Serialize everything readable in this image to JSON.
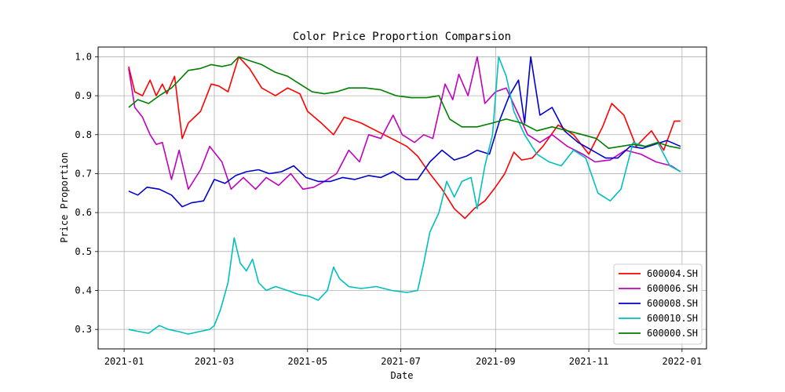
{
  "chart_data": {
    "type": "line",
    "title": "Color Price Proportion Comparsion",
    "xlabel": "Date",
    "ylabel": "Price Proportion",
    "grid": true,
    "legend_position": "lower-right",
    "x_ticks": [
      "2021-01",
      "2021-03",
      "2021-05",
      "2021-07",
      "2021-09",
      "2021-11",
      "2022-01"
    ],
    "y_ticks": [
      "0.3",
      "0.4",
      "0.5",
      "0.6",
      "0.7",
      "0.8",
      "0.9",
      "1.0"
    ],
    "xlim": [
      "2020-12-15",
      "2022-01-17"
    ],
    "ylim": [
      0.25,
      1.025
    ],
    "series": [
      {
        "name": "600004.SH",
        "color": "#ff0000",
        "points": [
          [
            "2021-01-04",
            0.975
          ],
          [
            "2021-01-08",
            0.91
          ],
          [
            "2021-01-13",
            0.9
          ],
          [
            "2021-01-18",
            0.94
          ],
          [
            "2021-01-22",
            0.9
          ],
          [
            "2021-01-26",
            0.93
          ],
          [
            "2021-01-29",
            0.905
          ],
          [
            "2021-02-03",
            0.95
          ],
          [
            "2021-02-08",
            0.79
          ],
          [
            "2021-02-12",
            0.83
          ],
          [
            "2021-02-20",
            0.86
          ],
          [
            "2021-02-27",
            0.93
          ],
          [
            "2021-03-04",
            0.925
          ],
          [
            "2021-03-10",
            0.91
          ],
          [
            "2021-03-17",
            1.0
          ],
          [
            "2021-03-24",
            0.97
          ],
          [
            "2021-04-01",
            0.92
          ],
          [
            "2021-04-10",
            0.9
          ],
          [
            "2021-04-18",
            0.92
          ],
          [
            "2021-04-26",
            0.905
          ],
          [
            "2021-05-01",
            0.86
          ],
          [
            "2021-05-10",
            0.83
          ],
          [
            "2021-05-18",
            0.8
          ],
          [
            "2021-05-25",
            0.845
          ],
          [
            "2021-06-05",
            0.83
          ],
          [
            "2021-06-15",
            0.81
          ],
          [
            "2021-06-25",
            0.79
          ],
          [
            "2021-07-05",
            0.77
          ],
          [
            "2021-07-12",
            0.745
          ],
          [
            "2021-07-20",
            0.7
          ],
          [
            "2021-07-28",
            0.66
          ],
          [
            "2021-08-05",
            0.61
          ],
          [
            "2021-08-12",
            0.585
          ],
          [
            "2021-08-18",
            0.61
          ],
          [
            "2021-08-25",
            0.63
          ],
          [
            "2021-08-31",
            0.66
          ],
          [
            "2021-09-07",
            0.7
          ],
          [
            "2021-09-13",
            0.755
          ],
          [
            "2021-09-18",
            0.735
          ],
          [
            "2021-09-25",
            0.74
          ],
          [
            "2021-10-02",
            0.77
          ],
          [
            "2021-10-12",
            0.825
          ],
          [
            "2021-10-22",
            0.8
          ],
          [
            "2021-11-01",
            0.75
          ],
          [
            "2021-11-10",
            0.82
          ],
          [
            "2021-11-16",
            0.88
          ],
          [
            "2021-11-24",
            0.85
          ],
          [
            "2021-12-02",
            0.77
          ],
          [
            "2021-12-12",
            0.81
          ],
          [
            "2021-12-20",
            0.76
          ],
          [
            "2021-12-27",
            0.835
          ],
          [
            "2021-12-31",
            0.835
          ]
        ]
      },
      {
        "name": "600006.SH",
        "color": "#bf00bf",
        "points": [
          [
            "2021-01-04",
            0.97
          ],
          [
            "2021-01-08",
            0.87
          ],
          [
            "2021-01-13",
            0.845
          ],
          [
            "2021-01-18",
            0.8
          ],
          [
            "2021-01-22",
            0.775
          ],
          [
            "2021-01-26",
            0.78
          ],
          [
            "2021-02-01",
            0.685
          ],
          [
            "2021-02-06",
            0.76
          ],
          [
            "2021-02-12",
            0.66
          ],
          [
            "2021-02-20",
            0.71
          ],
          [
            "2021-02-26",
            0.77
          ],
          [
            "2021-03-06",
            0.73
          ],
          [
            "2021-03-12",
            0.66
          ],
          [
            "2021-03-20",
            0.69
          ],
          [
            "2021-03-28",
            0.66
          ],
          [
            "2021-04-04",
            0.69
          ],
          [
            "2021-04-12",
            0.67
          ],
          [
            "2021-04-20",
            0.7
          ],
          [
            "2021-04-28",
            0.66
          ],
          [
            "2021-05-05",
            0.665
          ],
          [
            "2021-05-12",
            0.68
          ],
          [
            "2021-05-20",
            0.7
          ],
          [
            "2021-05-28",
            0.76
          ],
          [
            "2021-06-04",
            0.73
          ],
          [
            "2021-06-10",
            0.8
          ],
          [
            "2021-06-18",
            0.79
          ],
          [
            "2021-06-26",
            0.85
          ],
          [
            "2021-07-02",
            0.8
          ],
          [
            "2021-07-10",
            0.78
          ],
          [
            "2021-07-16",
            0.8
          ],
          [
            "2021-07-22",
            0.79
          ],
          [
            "2021-07-30",
            0.93
          ],
          [
            "2021-08-04",
            0.89
          ],
          [
            "2021-08-08",
            0.955
          ],
          [
            "2021-08-14",
            0.9
          ],
          [
            "2021-08-20",
            1.0
          ],
          [
            "2021-08-25",
            0.88
          ],
          [
            "2021-09-01",
            0.91
          ],
          [
            "2021-09-08",
            0.92
          ],
          [
            "2021-09-15",
            0.86
          ],
          [
            "2021-09-22",
            0.8
          ],
          [
            "2021-09-30",
            0.78
          ],
          [
            "2021-10-08",
            0.8
          ],
          [
            "2021-10-18",
            0.77
          ],
          [
            "2021-10-28",
            0.75
          ],
          [
            "2021-11-05",
            0.73
          ],
          [
            "2021-11-15",
            0.735
          ],
          [
            "2021-11-25",
            0.76
          ],
          [
            "2021-12-05",
            0.75
          ],
          [
            "2021-12-15",
            0.73
          ],
          [
            "2021-12-25",
            0.72
          ],
          [
            "2021-12-31",
            0.705
          ]
        ]
      },
      {
        "name": "600008.SH",
        "color": "#0000cc",
        "points": [
          [
            "2021-01-04",
            0.655
          ],
          [
            "2021-01-10",
            0.645
          ],
          [
            "2021-01-16",
            0.665
          ],
          [
            "2021-01-24",
            0.66
          ],
          [
            "2021-02-01",
            0.645
          ],
          [
            "2021-02-08",
            0.615
          ],
          [
            "2021-02-14",
            0.625
          ],
          [
            "2021-02-22",
            0.63
          ],
          [
            "2021-03-01",
            0.685
          ],
          [
            "2021-03-08",
            0.675
          ],
          [
            "2021-03-15",
            0.695
          ],
          [
            "2021-03-22",
            0.705
          ],
          [
            "2021-03-30",
            0.71
          ],
          [
            "2021-04-06",
            0.7
          ],
          [
            "2021-04-14",
            0.705
          ],
          [
            "2021-04-22",
            0.72
          ],
          [
            "2021-04-30",
            0.69
          ],
          [
            "2021-05-08",
            0.68
          ],
          [
            "2021-05-16",
            0.68
          ],
          [
            "2021-05-24",
            0.69
          ],
          [
            "2021-06-01",
            0.685
          ],
          [
            "2021-06-10",
            0.695
          ],
          [
            "2021-06-18",
            0.69
          ],
          [
            "2021-06-26",
            0.705
          ],
          [
            "2021-07-04",
            0.685
          ],
          [
            "2021-07-12",
            0.685
          ],
          [
            "2021-07-20",
            0.73
          ],
          [
            "2021-07-28",
            0.76
          ],
          [
            "2021-08-05",
            0.735
          ],
          [
            "2021-08-13",
            0.745
          ],
          [
            "2021-08-20",
            0.76
          ],
          [
            "2021-08-28",
            0.75
          ],
          [
            "2021-09-04",
            0.84
          ],
          [
            "2021-09-10",
            0.9
          ],
          [
            "2021-09-16",
            0.94
          ],
          [
            "2021-09-20",
            0.83
          ],
          [
            "2021-09-24",
            1.0
          ],
          [
            "2021-09-30",
            0.85
          ],
          [
            "2021-10-08",
            0.87
          ],
          [
            "2021-10-16",
            0.81
          ],
          [
            "2021-10-25",
            0.78
          ],
          [
            "2021-11-03",
            0.76
          ],
          [
            "2021-11-12",
            0.74
          ],
          [
            "2021-11-20",
            0.74
          ],
          [
            "2021-11-28",
            0.77
          ],
          [
            "2021-12-06",
            0.765
          ],
          [
            "2021-12-14",
            0.775
          ],
          [
            "2021-12-22",
            0.785
          ],
          [
            "2021-12-31",
            0.77
          ]
        ]
      },
      {
        "name": "600010.SH",
        "color": "#00bfbf",
        "points": [
          [
            "2021-01-04",
            0.3
          ],
          [
            "2021-01-10",
            0.295
          ],
          [
            "2021-01-17",
            0.29
          ],
          [
            "2021-01-24",
            0.31
          ],
          [
            "2021-01-30",
            0.3
          ],
          [
            "2021-02-05",
            0.295
          ],
          [
            "2021-02-12",
            0.288
          ],
          [
            "2021-02-20",
            0.295
          ],
          [
            "2021-02-26",
            0.3
          ],
          [
            "2021-03-01",
            0.31
          ],
          [
            "2021-03-05",
            0.35
          ],
          [
            "2021-03-10",
            0.42
          ],
          [
            "2021-03-14",
            0.535
          ],
          [
            "2021-03-18",
            0.47
          ],
          [
            "2021-03-22",
            0.45
          ],
          [
            "2021-03-26",
            0.48
          ],
          [
            "2021-03-30",
            0.42
          ],
          [
            "2021-04-04",
            0.4
          ],
          [
            "2021-04-10",
            0.41
          ],
          [
            "2021-04-18",
            0.4
          ],
          [
            "2021-04-25",
            0.39
          ],
          [
            "2021-05-02",
            0.385
          ],
          [
            "2021-05-08",
            0.375
          ],
          [
            "2021-05-14",
            0.4
          ],
          [
            "2021-05-18",
            0.46
          ],
          [
            "2021-05-22",
            0.43
          ],
          [
            "2021-05-28",
            0.41
          ],
          [
            "2021-06-05",
            0.405
          ],
          [
            "2021-06-15",
            0.41
          ],
          [
            "2021-06-25",
            0.4
          ],
          [
            "2021-07-05",
            0.395
          ],
          [
            "2021-07-12",
            0.4
          ],
          [
            "2021-07-16",
            0.47
          ],
          [
            "2021-07-20",
            0.55
          ],
          [
            "2021-07-26",
            0.6
          ],
          [
            "2021-07-31",
            0.68
          ],
          [
            "2021-08-05",
            0.64
          ],
          [
            "2021-08-10",
            0.68
          ],
          [
            "2021-08-16",
            0.69
          ],
          [
            "2021-08-20",
            0.61
          ],
          [
            "2021-08-25",
            0.72
          ],
          [
            "2021-08-30",
            0.8
          ],
          [
            "2021-09-03",
            1.0
          ],
          [
            "2021-09-08",
            0.95
          ],
          [
            "2021-09-13",
            0.86
          ],
          [
            "2021-09-20",
            0.8
          ],
          [
            "2021-09-28",
            0.75
          ],
          [
            "2021-10-06",
            0.73
          ],
          [
            "2021-10-14",
            0.72
          ],
          [
            "2021-10-22",
            0.76
          ],
          [
            "2021-10-30",
            0.74
          ],
          [
            "2021-11-07",
            0.65
          ],
          [
            "2021-11-15",
            0.63
          ],
          [
            "2021-11-22",
            0.66
          ],
          [
            "2021-11-30",
            0.78
          ],
          [
            "2021-12-08",
            0.77
          ],
          [
            "2021-12-16",
            0.78
          ],
          [
            "2021-12-24",
            0.72
          ],
          [
            "2021-12-31",
            0.705
          ]
        ]
      },
      {
        "name": "600000.SH",
        "color": "#007f00",
        "points": [
          [
            "2021-01-04",
            0.87
          ],
          [
            "2021-01-10",
            0.89
          ],
          [
            "2021-01-17",
            0.88
          ],
          [
            "2021-01-24",
            0.9
          ],
          [
            "2021-02-01",
            0.92
          ],
          [
            "2021-02-06",
            0.94
          ],
          [
            "2021-02-12",
            0.965
          ],
          [
            "2021-02-20",
            0.97
          ],
          [
            "2021-02-27",
            0.98
          ],
          [
            "2021-03-06",
            0.975
          ],
          [
            "2021-03-12",
            0.98
          ],
          [
            "2021-03-17",
            1.0
          ],
          [
            "2021-03-24",
            0.99
          ],
          [
            "2021-04-01",
            0.98
          ],
          [
            "2021-04-10",
            0.96
          ],
          [
            "2021-04-18",
            0.95
          ],
          [
            "2021-04-26",
            0.93
          ],
          [
            "2021-05-04",
            0.91
          ],
          [
            "2021-05-12",
            0.905
          ],
          [
            "2021-05-20",
            0.91
          ],
          [
            "2021-05-28",
            0.92
          ],
          [
            "2021-06-08",
            0.92
          ],
          [
            "2021-06-18",
            0.915
          ],
          [
            "2021-06-28",
            0.9
          ],
          [
            "2021-07-08",
            0.895
          ],
          [
            "2021-07-18",
            0.895
          ],
          [
            "2021-07-26",
            0.9
          ],
          [
            "2021-08-02",
            0.84
          ],
          [
            "2021-08-10",
            0.82
          ],
          [
            "2021-08-20",
            0.82
          ],
          [
            "2021-08-30",
            0.83
          ],
          [
            "2021-09-08",
            0.84
          ],
          [
            "2021-09-18",
            0.83
          ],
          [
            "2021-09-28",
            0.81
          ],
          [
            "2021-10-08",
            0.82
          ],
          [
            "2021-10-18",
            0.81
          ],
          [
            "2021-10-28",
            0.8
          ],
          [
            "2021-11-06",
            0.79
          ],
          [
            "2021-11-14",
            0.765
          ],
          [
            "2021-11-22",
            0.77
          ],
          [
            "2021-11-30",
            0.775
          ],
          [
            "2021-12-08",
            0.77
          ],
          [
            "2021-12-16",
            0.78
          ],
          [
            "2021-12-24",
            0.77
          ],
          [
            "2021-12-31",
            0.765
          ]
        ]
      }
    ]
  }
}
